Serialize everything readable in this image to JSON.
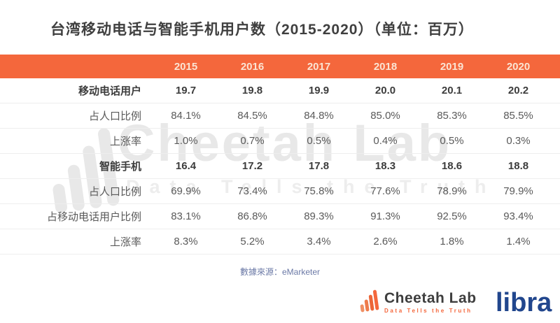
{
  "title": "台湾移动电话与智能手机用户数（2015-2020）（单位：百万）",
  "table": {
    "header_years": [
      "2015",
      "2016",
      "2017",
      "2018",
      "2019",
      "2020"
    ],
    "rows": [
      {
        "label": "移动电话用户",
        "bold": true,
        "values": [
          "19.7",
          "19.8",
          "19.9",
          "20.0",
          "20.1",
          "20.2"
        ]
      },
      {
        "label": "占人口比例",
        "bold": false,
        "values": [
          "84.1%",
          "84.5%",
          "84.8%",
          "85.0%",
          "85.3%",
          "85.5%"
        ]
      },
      {
        "label": "上涨率",
        "bold": false,
        "values": [
          "1.0%",
          "0.7%",
          "0.5%",
          "0.4%",
          "0.5%",
          "0.3%"
        ]
      },
      {
        "label": "智能手机",
        "bold": true,
        "values": [
          "16.4",
          "17.2",
          "17.8",
          "18.3",
          "18.6",
          "18.8"
        ]
      },
      {
        "label": "占人口比例",
        "bold": false,
        "values": [
          "69.9%",
          "73.4%",
          "75.8%",
          "77.6%",
          "78.9%",
          "79.9%"
        ]
      },
      {
        "label": "占移动电话用户比例",
        "bold": false,
        "values": [
          "83.1%",
          "86.8%",
          "89.3%",
          "91.3%",
          "92.5%",
          "93.4%"
        ]
      },
      {
        "label": "上涨率",
        "bold": false,
        "values": [
          "8.3%",
          "5.2%",
          "3.4%",
          "2.6%",
          "1.8%",
          "1.4%"
        ]
      }
    ]
  },
  "source": {
    "text": "數據來源：eMarketer"
  },
  "watermark": {
    "line1": "Cheetah Lab",
    "line2": "Data Tells the Truth"
  },
  "footer": {
    "cheetah_name": "Cheetah Lab",
    "cheetah_tagline": "Data Tells the Truth",
    "libra": "libra"
  },
  "colors": {
    "accent": "#f4673c",
    "header-text": "#fbe4d3",
    "divider": "#eeeeee",
    "watermark": "#e8e8e8",
    "watermark2": "#ededed",
    "source-blue": "#6b79a6",
    "libra-blue": "#21468d"
  },
  "chart_data": {
    "type": "table",
    "title": "台湾移动电话与智能手机用户数（2015-2020）（单位：百万）",
    "categories": [
      "2015",
      "2016",
      "2017",
      "2018",
      "2019",
      "2020"
    ],
    "series": [
      {
        "name": "移动电话用户 (百万)",
        "values": [
          19.7,
          19.8,
          19.9,
          20.0,
          20.1,
          20.2
        ]
      },
      {
        "name": "移动电话用户占人口比例 (%)",
        "values": [
          84.1,
          84.5,
          84.8,
          85.0,
          85.3,
          85.5
        ]
      },
      {
        "name": "移动电话用户上涨率 (%)",
        "values": [
          1.0,
          0.7,
          0.5,
          0.4,
          0.5,
          0.3
        ]
      },
      {
        "name": "智能手机 (百万)",
        "values": [
          16.4,
          17.2,
          17.8,
          18.3,
          18.6,
          18.8
        ]
      },
      {
        "name": "智能手机占人口比例 (%)",
        "values": [
          69.9,
          73.4,
          75.8,
          77.6,
          78.9,
          79.9
        ]
      },
      {
        "name": "智能手机占移动电话用户比例 (%)",
        "values": [
          83.1,
          86.8,
          89.3,
          91.3,
          92.5,
          93.4
        ]
      },
      {
        "name": "智能手机上涨率 (%)",
        "values": [
          8.3,
          5.2,
          3.4,
          2.6,
          1.8,
          1.4
        ]
      }
    ],
    "source": "eMarketer",
    "legend_position": "none",
    "grid": "horizontal-dividers"
  }
}
